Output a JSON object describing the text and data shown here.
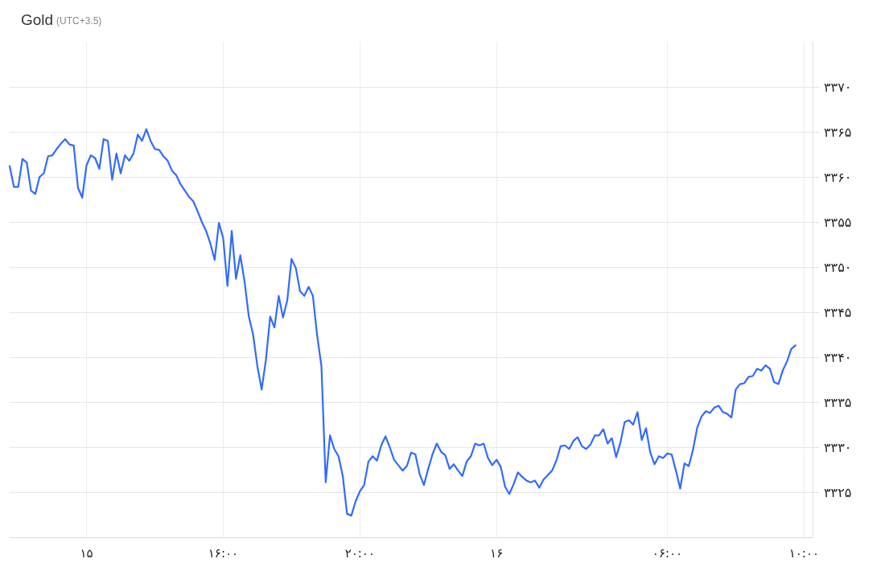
{
  "chart_data": {
    "type": "line",
    "title": "Gold",
    "subtitle": "(UTC+3.5)",
    "categories": [
      null,
      null,
      null,
      null,
      null,
      null,
      null,
      null,
      null,
      null,
      null,
      null,
      null,
      null,
      null,
      null,
      null,
      null,
      "۱۵",
      null,
      null,
      null,
      null,
      null,
      null,
      null,
      null,
      null,
      null,
      null,
      null,
      null,
      null,
      null,
      null,
      null,
      null,
      null,
      null,
      null,
      null,
      null,
      null,
      null,
      null,
      null,
      null,
      null,
      null,
      null,
      "۱۶:۰۰",
      null,
      null,
      null,
      null,
      null,
      null,
      null,
      null,
      null,
      null,
      null,
      null,
      null,
      null,
      null,
      null,
      null,
      null,
      null,
      null,
      null,
      null,
      null,
      null,
      null,
      null,
      null,
      null,
      null,
      null,
      null,
      "۲۰:۰۰",
      null,
      null,
      null,
      null,
      null,
      null,
      null,
      null,
      null,
      null,
      null,
      null,
      null,
      null,
      null,
      null,
      null,
      null,
      null,
      null,
      null,
      null,
      null,
      null,
      null,
      null,
      null,
      null,
      null,
      null,
      null,
      "۱۶",
      null,
      null,
      null,
      null,
      null,
      null,
      null,
      null,
      null,
      null,
      null,
      null,
      null,
      null,
      null,
      null,
      null,
      null,
      null,
      null,
      null,
      null,
      null,
      null,
      null,
      null,
      null,
      null,
      null,
      null,
      null,
      null,
      null,
      null,
      null,
      null,
      null,
      null,
      null,
      "۰۶:۰۰",
      null,
      null,
      null,
      null,
      null,
      null,
      null,
      null,
      null,
      null,
      null,
      null,
      null,
      null,
      null,
      null,
      null,
      null,
      null,
      null,
      null,
      null,
      null,
      null,
      null,
      null,
      null,
      null,
      null,
      null,
      null,
      "۱۰:۰۰",
      null,
      null
    ],
    "series": [
      {
        "color": "#2f6bff",
        "values": [
          3361.2,
          3358.9,
          3358.9,
          3362.0,
          3361.6,
          3358.5,
          3358.1,
          3360.0,
          3360.4,
          3362.3,
          3362.4,
          3363.1,
          3363.7,
          3364.2,
          3363.6,
          3363.5,
          3358.8,
          3357.7,
          3361.3,
          3362.4,
          3362.1,
          3360.9,
          3364.2,
          3364.0,
          3359.7,
          3362.6,
          3360.4,
          3362.4,
          3361.8,
          3362.6,
          3364.7,
          3364.0,
          3365.3,
          3364.0,
          3363.1,
          3363.0,
          3362.3,
          3361.8,
          3360.7,
          3360.2,
          3359.2,
          3358.5,
          3357.8,
          3357.3,
          3356.2,
          3355.0,
          3354.0,
          3352.6,
          3350.8,
          3354.9,
          3353.2,
          3347.9,
          3354.0,
          3348.7,
          3351.3,
          3348.4,
          3344.5,
          3342.5,
          3339.0,
          3336.4,
          3339.7,
          3344.5,
          3343.3,
          3346.8,
          3344.4,
          3346.3,
          3350.9,
          3349.9,
          3347.3,
          3346.8,
          3347.8,
          3346.8,
          3342.4,
          3339.0,
          3326.1,
          3331.3,
          3329.8,
          3329.0,
          3326.8,
          3322.6,
          3322.4,
          3324.0,
          3325.1,
          3325.8,
          3328.4,
          3329.0,
          3328.5,
          3330.2,
          3331.2,
          3330.0,
          3328.6,
          3328.0,
          3327.4,
          3327.9,
          3329.4,
          3329.2,
          3327.0,
          3325.8,
          3327.6,
          3329.2,
          3330.4,
          3329.5,
          3329.1,
          3327.6,
          3328.1,
          3327.4,
          3326.8,
          3328.4,
          3329.0,
          3330.4,
          3330.2,
          3330.4,
          3328.8,
          3328.0,
          3328.6,
          3327.8,
          3325.6,
          3324.8,
          3325.9,
          3327.2,
          3326.7,
          3326.3,
          3326.1,
          3326.3,
          3325.5,
          3326.4,
          3326.9,
          3327.4,
          3328.5,
          3330.1,
          3330.2,
          3329.8,
          3330.7,
          3331.1,
          3330.1,
          3329.8,
          3330.3,
          3331.3,
          3331.3,
          3332.0,
          3330.4,
          3331.0,
          3328.9,
          3330.5,
          3332.8,
          3333.0,
          3332.5,
          3333.9,
          3330.8,
          3332.1,
          3329.4,
          3328.1,
          3329.0,
          3328.8,
          3329.3,
          3329.2,
          3327.4,
          3325.4,
          3328.2,
          3327.9,
          3329.7,
          3332.2,
          3333.4,
          3334.0,
          3333.8,
          3334.4,
          3334.6,
          3333.9,
          3333.7,
          3333.3,
          3336.4,
          3337.0,
          3337.1,
          3337.8,
          3337.9,
          3338.7,
          3338.5,
          3339.1,
          3338.7,
          3337.2,
          3337.0,
          3338.5,
          3339.5,
          3340.9,
          3341.3,
          null,
          null,
          null,
          null
        ]
      }
    ],
    "ylim": [
      3320,
      3375
    ],
    "yticks": [
      {
        "value": 3325,
        "label": "۳۳۲۵"
      },
      {
        "value": 3330,
        "label": "۳۳۳۰"
      },
      {
        "value": 3335,
        "label": "۳۳۳۵"
      },
      {
        "value": 3340,
        "label": "۳۳۴۰"
      },
      {
        "value": 3345,
        "label": "۳۳۴۵"
      },
      {
        "value": 3350,
        "label": "۳۳۵۰"
      },
      {
        "value": 3355,
        "label": "۳۳۵۵"
      },
      {
        "value": 3360,
        "label": "۳۳۶۰"
      },
      {
        "value": 3365,
        "label": "۳۳۶۵"
      },
      {
        "value": 3370,
        "label": "۳۳۷۰"
      }
    ],
    "grid": true,
    "marker": "none",
    "line_style": "solid"
  }
}
